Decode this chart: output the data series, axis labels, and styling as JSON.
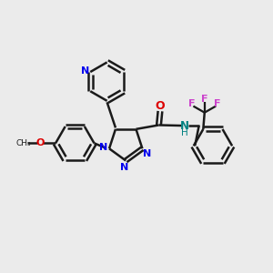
{
  "background_color": "#ebebeb",
  "bond_color": "#1a1a1a",
  "bond_width": 1.8,
  "dbo": 0.12,
  "figsize": [
    3.0,
    3.0
  ],
  "dpi": 100,
  "colors": {
    "N": "#0000ee",
    "O": "#dd0000",
    "F": "#cc44cc",
    "NH": "#008080",
    "C": "#1a1a1a"
  },
  "xlim": [
    0,
    10
  ],
  "ylim": [
    0,
    10
  ]
}
